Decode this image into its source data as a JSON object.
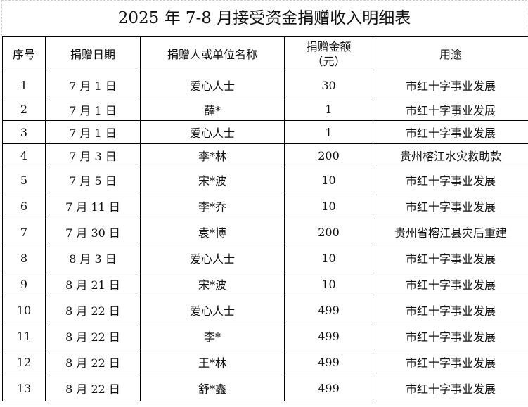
{
  "title": "2025 年 7-8 月接受资金捐赠收入明细表",
  "headers": [
    "序号",
    "捐赠日期",
    "捐赠人或单位名称",
    "捐赠金额\n（元）",
    "用途"
  ],
  "header_amount_line1": "捐赠金额",
  "header_amount_line2": "（元）",
  "rows": [
    [
      "1",
      "7 月 1 日",
      "爱心人士",
      "30",
      "市红十字事业发展"
    ],
    [
      "2",
      "7 月 1 日",
      "薛*",
      "1",
      "市红十字事业发展"
    ],
    [
      "3",
      "7 月 1 日",
      "爱心人士",
      "1",
      "市红十字事业发展"
    ],
    [
      "4",
      "7 月 3 日",
      "李*林",
      "200",
      "贵州榕江水灾救助款"
    ],
    [
      "5",
      "7 月 5 日",
      "宋*波",
      "10",
      "市红十字事业发展"
    ],
    [
      "6",
      "7 月 11 日",
      "李*乔",
      "10",
      "市红十字事业发展"
    ],
    [
      "7",
      "7 月 30 日",
      "袁*博",
      "200",
      "贵州省榕江县灾后重建"
    ],
    [
      "8",
      "8 月 3 日",
      "爱心人士",
      "10",
      "市红十字事业发展"
    ],
    [
      "9",
      "8 月 21 日",
      "宋*波",
      "10",
      "市红十字事业发展"
    ],
    [
      "10",
      "8 月 22 日",
      "爱心人士",
      "499",
      "市红十字事业发展"
    ],
    [
      "11",
      "8 月 22 日",
      "李*",
      "499",
      "市红十字事业发展"
    ],
    [
      "12",
      "8 月 22 日",
      "王*林",
      "499",
      "市红十字事业发展"
    ],
    [
      "13",
      "8 月 22 日",
      "舒*鑫",
      "499",
      "市红十字事业发展"
    ]
  ]
}
